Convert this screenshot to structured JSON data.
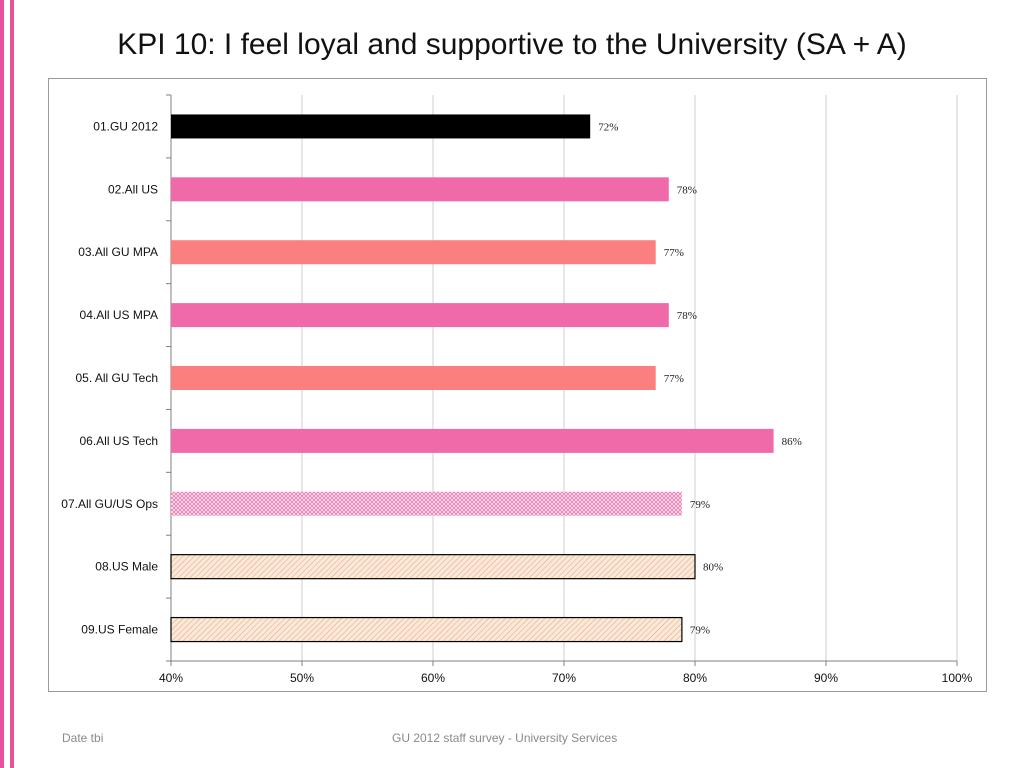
{
  "slide": {
    "title": "KPI 10: I feel loyal and supportive to the University (SA + A)",
    "footer_left": "Date tbi",
    "footer_center": "GU 2012 staff survey -  University Services",
    "accent_color": "#e8529c"
  },
  "chart_data": {
    "type": "bar",
    "orientation": "horizontal",
    "title": "",
    "xlabel": "",
    "ylabel": "",
    "xlim": [
      40,
      100
    ],
    "xticks": [
      40,
      50,
      60,
      70,
      80,
      90,
      100
    ],
    "tick_suffix": "%",
    "grid": true,
    "legend": "none",
    "categories": [
      "01.GU 2012",
      "02.All US",
      "03.All GU MPA",
      "04.All US MPA",
      "05. All GU Tech",
      "06.All US Tech",
      "07.All GU/US Ops",
      "08.US Male",
      "09.US Female"
    ],
    "values": [
      72,
      78,
      77,
      78,
      77,
      86,
      79,
      80,
      79
    ],
    "value_labels": [
      "72%",
      "78%",
      "77%",
      "78%",
      "77%",
      "86%",
      "79%",
      "80%",
      "79%"
    ],
    "bar_colors": [
      "#000000",
      "#f06aaa",
      "#fc7f7f",
      "#f06aaa",
      "#fc7f7f",
      "#f06aaa",
      "#f5b3d3",
      "#f9e0c8",
      "#f9e0c8"
    ],
    "bar_patterns": [
      "solid",
      "solid",
      "solid",
      "solid",
      "solid",
      "solid",
      "dotted",
      "hatched",
      "hatched"
    ]
  }
}
